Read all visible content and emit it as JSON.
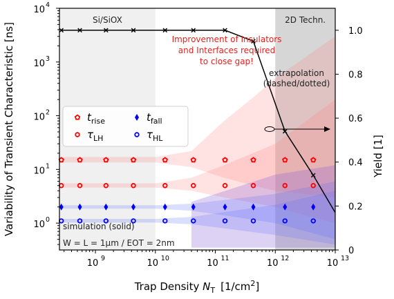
{
  "chart_data": {
    "type": "scatter",
    "xlabel_prefix": "Trap Density ",
    "xlabel_sym": "N",
    "xlabel_sub": "T",
    "xlabel_unit": "[1/cm",
    "xlabel_sup": "2",
    "xlabel_close": "]",
    "ylabel_left": "Variability of Transient Characteristic  [ns]",
    "ylabel_right": "Yield  [1]",
    "x_ticks": [
      "9",
      "10",
      "11",
      "12",
      "13"
    ],
    "y_left_ticks": [
      "0",
      "1",
      "2",
      "3",
      "4"
    ],
    "y_right_ticks": [
      "0",
      "0.2",
      "0.4",
      "0.6",
      "0.8",
      "1.0"
    ],
    "x_log_range": [
      8.4,
      13
    ],
    "y_left_log_range": [
      -0.5,
      4
    ],
    "y_right_range": [
      0,
      1.1
    ],
    "regions": [
      {
        "label": "Si/SiOX",
        "from_log": 8.4,
        "to_log": 10,
        "color": "#f0f0f0"
      },
      {
        "label": "2D Techn.",
        "from_log": 12,
        "to_log": 13,
        "color": "#d6d6d6"
      }
    ],
    "annotations": {
      "improvement": [
        "Improvement of Insulators",
        "and Interfaces required",
        "to close gap!"
      ],
      "extrapolation": [
        "extrapolation",
        "(dashed/dotted)"
      ],
      "simulation": "simulation (solid)",
      "params": "W = L = 1µm  /  EOT = 2nm"
    },
    "legend": [
      {
        "sym": "t",
        "sub": "rise",
        "marker": "pentagon",
        "color": "#ff0000"
      },
      {
        "sym": "t",
        "sub": "fall",
        "marker": "diamond",
        "color": "#0000ff"
      },
      {
        "sym": "τ",
        "sub": "LH",
        "marker": "circle",
        "color": "#ff0000"
      },
      {
        "sym": "τ",
        "sub": "HL",
        "marker": "circle",
        "color": "#0000ff"
      }
    ],
    "marker_x": [
      270000000.0,
      550000000.0,
      1500000000.0,
      4300000000.0,
      14500000000.0,
      43000000000.0,
      145000000000.0,
      430000000000.0,
      1450000000000.0,
      4300000000000.0
    ],
    "series": [
      {
        "name": "t_rise",
        "marker": "pentagon",
        "color": "#ff0000",
        "values": [
          15,
          15,
          15,
          15,
          15,
          15,
          15,
          15,
          15,
          15
        ]
      },
      {
        "name": "tau_LH",
        "marker": "circle",
        "color": "#ff0000",
        "values": [
          5,
          5,
          5,
          5,
          5,
          5,
          5,
          5,
          5,
          5
        ]
      },
      {
        "name": "t_fall",
        "marker": "diamond",
        "color": "#0000ff",
        "values": [
          2,
          2,
          2,
          2,
          2,
          2,
          2,
          2,
          2,
          2
        ]
      },
      {
        "name": "tau_HL",
        "marker": "circle",
        "color": "#0000ff",
        "values": [
          1.1,
          1.1,
          1.1,
          1.1,
          1.1,
          1.1,
          1.1,
          1.1,
          1.1,
          1.1
        ]
      }
    ],
    "yield_x": [
      270000000.0,
      550000000.0,
      1500000000.0,
      4300000000.0,
      14500000000.0,
      43000000000.0,
      145000000000.0,
      430000000000.0,
      1450000000000.0,
      4300000000000.0,
      10000000000000.0
    ],
    "yield_y": [
      1.0,
      1.0,
      1.0,
      1.0,
      1.0,
      1.0,
      1.0,
      0.95,
      0.54,
      0.34,
      0.17
    ],
    "bands_red": [
      {
        "x": [
          270000000.0,
          10000000000.0,
          40000000000.0,
          140000000000.0,
          430000000000.0,
          1000000000000.0,
          10000000000000.0
        ],
        "lo": [
          13.5,
          13.5,
          11,
          7,
          5,
          4,
          3
        ],
        "hi": [
          17,
          17,
          22,
          80,
          220,
          500,
          3000
        ]
      },
      {
        "x": [
          270000000.0,
          10000000000.0,
          40000000000.0,
          140000000000.0,
          1000000000000.0,
          10000000000000.0
        ],
        "lo": [
          4.6,
          4.6,
          4,
          3,
          2,
          1
        ],
        "hi": [
          5.5,
          5.5,
          7,
          12,
          30,
          200
        ]
      }
    ],
    "bands_blue": [
      {
        "x": [
          270000000.0,
          10000000000.0,
          40000000000.0,
          140000000000.0,
          1000000000000.0,
          10000000000000.0
        ],
        "lo": [
          1.85,
          1.85,
          1.7,
          1.4,
          1.0,
          0.5
        ],
        "hi": [
          2.15,
          2.15,
          2.3,
          2.7,
          3.5,
          6
        ]
      },
      {
        "x": [
          270000000.0,
          10000000000.0,
          40000000000.0,
          140000000000.0,
          1000000000000.0,
          10000000000000.0
        ],
        "lo": [
          1.02,
          1.02,
          0.95,
          0.8,
          0.6,
          0.4
        ],
        "hi": [
          1.2,
          1.2,
          1.3,
          1.6,
          2.2,
          4
        ]
      }
    ],
    "band_purple": {
      "x": [
        40000000000.0,
        1000000000000.0,
        10000000000000.0
      ],
      "lo": [
        0.35,
        0.35,
        0.35
      ],
      "hi": [
        2.5,
        8,
        12
      ]
    }
  }
}
